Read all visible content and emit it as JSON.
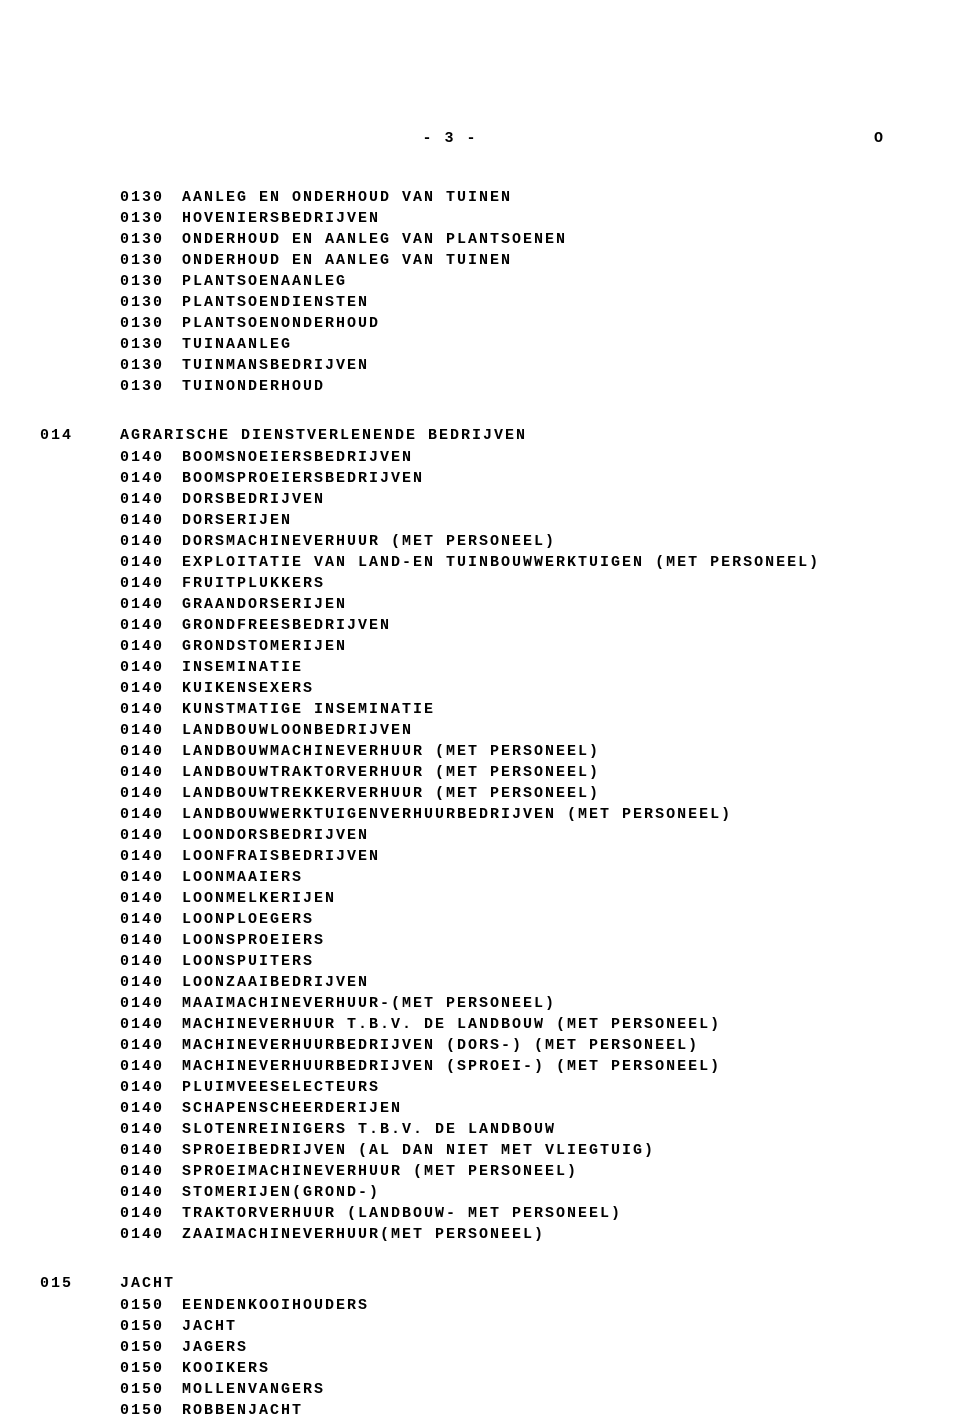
{
  "page_number_display": "-   3  -",
  "page_marker": "O",
  "orphan_items": [
    {
      "code": "0130",
      "text": "AANLEG EN ONDERHOUD VAN TUINEN"
    },
    {
      "code": "0130",
      "text": "HOVENIERSBEDRIJVEN"
    },
    {
      "code": "0130",
      "text": "ONDERHOUD EN AANLEG VAN PLANTSOENEN"
    },
    {
      "code": "0130",
      "text": "ONDERHOUD EN AANLEG VAN TUINEN"
    },
    {
      "code": "0130",
      "text": "PLANTSOENAANLEG"
    },
    {
      "code": "0130",
      "text": "PLANTSOENDIENSTEN"
    },
    {
      "code": "0130",
      "text": "PLANTSOENONDERHOUD"
    },
    {
      "code": "0130",
      "text": "TUINAANLEG"
    },
    {
      "code": "0130",
      "text": "TUINMANSBEDRIJVEN"
    },
    {
      "code": "0130",
      "text": "TUINONDERHOUD"
    }
  ],
  "sections": [
    {
      "code": "014",
      "title": "AGRARISCHE DIENSTVERLENENDE BEDRIJVEN",
      "items": [
        {
          "code": "0140",
          "text": "BOOMSNOEIERSBEDRIJVEN"
        },
        {
          "code": "0140",
          "text": "BOOMSPROEIERSBEDRIJVEN"
        },
        {
          "code": "0140",
          "text": "DORSBEDRIJVEN"
        },
        {
          "code": "0140",
          "text": "DORSERIJEN"
        },
        {
          "code": "0140",
          "text": "DORSMACHINEVERHUUR (MET PERSONEEL)"
        },
        {
          "code": "0140",
          "text": "EXPLOITATIE VAN LAND-EN TUINBOUWWERKTUIGEN (MET PERSONEEL)"
        },
        {
          "code": "0140",
          "text": "FRUITPLUKKERS"
        },
        {
          "code": "0140",
          "text": "GRAANDORSERIJEN"
        },
        {
          "code": "0140",
          "text": "GRONDFREESBEDRIJVEN"
        },
        {
          "code": "0140",
          "text": "GRONDSTOMERIJEN"
        },
        {
          "code": "0140",
          "text": "INSEMINATIE"
        },
        {
          "code": "0140",
          "text": "KUIKENSEXERS"
        },
        {
          "code": "0140",
          "text": "KUNSTMATIGE INSEMINATIE"
        },
        {
          "code": "0140",
          "text": "LANDBOUWLOONBEDRIJVEN"
        },
        {
          "code": "0140",
          "text": "LANDBOUWMACHINEVERHUUR (MET PERSONEEL)"
        },
        {
          "code": "0140",
          "text": "LANDBOUWTRAKTORVERHUUR (MET PERSONEEL)"
        },
        {
          "code": "0140",
          "text": "LANDBOUWTREKKERVERHUUR (MET PERSONEEL)"
        },
        {
          "code": "0140",
          "text": "LANDBOUWWERKTUIGENVERHUURBEDRIJVEN (MET PERSONEEL)"
        },
        {
          "code": "0140",
          "text": "LOONDORSBEDRIJVEN"
        },
        {
          "code": "0140",
          "text": "LOONFRAISBEDRIJVEN"
        },
        {
          "code": "0140",
          "text": "LOONMAAIERS"
        },
        {
          "code": "0140",
          "text": "LOONMELKERIJEN"
        },
        {
          "code": "0140",
          "text": "LOONPLOEGERS"
        },
        {
          "code": "0140",
          "text": "LOONSPROEIERS"
        },
        {
          "code": "0140",
          "text": "LOONSPUITERS"
        },
        {
          "code": "0140",
          "text": "LOONZAAIBEDRIJVEN"
        },
        {
          "code": "0140",
          "text": "MAAIMACHINEVERHUUR-(MET PERSONEEL)"
        },
        {
          "code": "0140",
          "text": "MACHINEVERHUUR T.B.V. DE LANDBOUW (MET PERSONEEL)"
        },
        {
          "code": "0140",
          "text": "MACHINEVERHUURBEDRIJVEN (DORS-) (MET PERSONEEL)"
        },
        {
          "code": "0140",
          "text": "MACHINEVERHUURBEDRIJVEN (SPROEI-) (MET PERSONEEL)"
        },
        {
          "code": "0140",
          "text": "PLUIMVEESELECTEURS"
        },
        {
          "code": "0140",
          "text": "SCHAPENSCHEERDERIJEN"
        },
        {
          "code": "0140",
          "text": "SLOTENREINIGERS T.B.V. DE LANDBOUW"
        },
        {
          "code": "0140",
          "text": "SPROEIBEDRIJVEN (AL DAN NIET MET VLIEGTUIG)"
        },
        {
          "code": "0140",
          "text": "SPROEIMACHINEVERHUUR (MET PERSONEEL)"
        },
        {
          "code": "0140",
          "text": "STOMERIJEN(GROND-)"
        },
        {
          "code": "0140",
          "text": "TRAKTORVERHUUR (LANDBOUW- MET PERSONEEL)"
        },
        {
          "code": "0140",
          "text": "ZAAIMACHINEVERHUUR(MET PERSONEEL)"
        }
      ]
    },
    {
      "code": "015",
      "title": "JACHT",
      "items": [
        {
          "code": "0150",
          "text": "EENDENKOOIHOUDERS"
        },
        {
          "code": "0150",
          "text": "JACHT"
        },
        {
          "code": "0150",
          "text": "JAGERS"
        },
        {
          "code": "0150",
          "text": "KOOIKERS"
        },
        {
          "code": "0150",
          "text": "MOLLENVANGERS"
        },
        {
          "code": "0150",
          "text": "ROBBENJACHT"
        }
      ]
    }
  ]
}
